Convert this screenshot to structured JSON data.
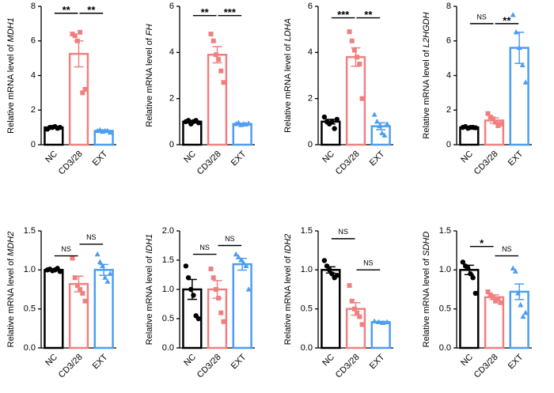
{
  "chart_data": [
    {
      "type": "bar",
      "ylabel": "Relative mRNA level of",
      "gene": "MDH1",
      "categories": [
        "NC",
        "CD3/28",
        "EXT"
      ],
      "colors": [
        "#000000",
        "#f08080",
        "#4d9ef0"
      ],
      "markers": [
        "circle",
        "square",
        "triangle"
      ],
      "values": [
        1.0,
        5.25,
        0.8
      ],
      "errors": [
        0.05,
        0.75,
        0.05
      ],
      "points": [
        [
          0.9,
          1.0,
          1.0,
          1.05,
          0.95,
          1.0
        ],
        [
          6.4,
          6.3,
          6.0,
          6.5,
          3.0,
          3.2
        ],
        [
          0.8,
          0.85,
          0.75,
          0.8,
          0.8,
          0.7
        ]
      ],
      "ylim": [
        0,
        8
      ],
      "yticks": [
        0,
        2,
        4,
        6,
        8
      ],
      "brackets": [
        {
          "between": [
            0,
            1
          ],
          "y": 7.6,
          "label": "**"
        },
        {
          "between": [
            1,
            2
          ],
          "y": 7.6,
          "label": "**"
        }
      ]
    },
    {
      "type": "bar",
      "ylabel": "Relative mRNA level of",
      "gene": "FH",
      "categories": [
        "NC",
        "CD3/28",
        "EXT"
      ],
      "colors": [
        "#000000",
        "#f08080",
        "#4d9ef0"
      ],
      "markers": [
        "circle",
        "square",
        "triangle"
      ],
      "values": [
        1.0,
        3.9,
        0.9
      ],
      "errors": [
        0.05,
        0.35,
        0.03
      ],
      "points": [
        [
          1.0,
          1.05,
          0.9,
          1.0,
          1.05,
          0.95
        ],
        [
          4.8,
          4.5,
          3.9,
          3.7,
          3.2,
          2.7
        ],
        [
          0.9,
          0.95,
          0.85,
          0.9,
          0.88,
          0.92
        ]
      ],
      "ylim": [
        0,
        6
      ],
      "yticks": [
        0,
        2,
        4,
        6
      ],
      "brackets": [
        {
          "between": [
            0,
            1
          ],
          "y": 5.6,
          "label": "**"
        },
        {
          "between": [
            1,
            2
          ],
          "y": 5.6,
          "label": "***"
        }
      ]
    },
    {
      "type": "bar",
      "ylabel": "Relative mRNA level of",
      "gene": "LDHA",
      "categories": [
        "NC",
        "CD3/28",
        "EXT"
      ],
      "colors": [
        "#000000",
        "#f08080",
        "#4d9ef0"
      ],
      "markers": [
        "circle",
        "square",
        "triangle"
      ],
      "values": [
        1.0,
        3.8,
        0.8
      ],
      "errors": [
        0.1,
        0.4,
        0.15
      ],
      "points": [
        [
          1.2,
          1.0,
          0.9,
          1.0,
          0.7,
          1.1
        ],
        [
          4.9,
          4.5,
          4.1,
          3.8,
          3.5,
          2.0
        ],
        [
          1.3,
          1.0,
          0.8,
          0.5,
          0.4,
          0.9
        ]
      ],
      "ylim": [
        0,
        6
      ],
      "yticks": [
        0,
        2,
        4,
        6
      ],
      "brackets": [
        {
          "between": [
            0,
            1
          ],
          "y": 5.5,
          "label": "***"
        },
        {
          "between": [
            1,
            2
          ],
          "y": 5.5,
          "label": "**"
        }
      ]
    },
    {
      "type": "bar",
      "ylabel": "Relative mRNA level of",
      "gene": "L2HGDH",
      "categories": [
        "NC",
        "CD3/28",
        "EXT"
      ],
      "colors": [
        "#000000",
        "#f08080",
        "#4d9ef0"
      ],
      "markers": [
        "circle",
        "square",
        "triangle"
      ],
      "values": [
        1.0,
        1.4,
        5.6
      ],
      "errors": [
        0.05,
        0.15,
        0.9
      ],
      "points": [
        [
          1.0,
          1.05,
          0.95,
          1.0,
          1.0,
          0.98
        ],
        [
          1.8,
          1.6,
          1.5,
          1.3,
          1.1,
          1.2
        ],
        [
          7.5,
          6.5,
          5.6,
          4.6,
          3.6
        ]
      ],
      "ylim": [
        0,
        8
      ],
      "yticks": [
        0,
        2,
        4,
        6,
        8
      ],
      "brackets": [
        {
          "between": [
            0,
            1
          ],
          "y": 7.0,
          "label": "NS"
        },
        {
          "between": [
            1,
            2
          ],
          "y": 7.0,
          "label": "**"
        }
      ]
    },
    {
      "type": "bar",
      "ylabel": "Relative mRNA level of",
      "gene": "MDH2",
      "categories": [
        "NC",
        "CD3/28",
        "EXT"
      ],
      "colors": [
        "#000000",
        "#f08080",
        "#4d9ef0"
      ],
      "markers": [
        "circle",
        "square",
        "triangle"
      ],
      "values": [
        1.0,
        0.82,
        1.0
      ],
      "errors": [
        0.01,
        0.1,
        0.07
      ],
      "points": [
        [
          1.0,
          1.01,
          0.99,
          1.0,
          1.02,
          0.98
        ],
        [
          1.15,
          0.9,
          0.8,
          0.75,
          0.7,
          0.6
        ],
        [
          1.2,
          1.1,
          1.05,
          0.9,
          0.85,
          0.95
        ]
      ],
      "ylim": [
        0,
        1.5
      ],
      "yticks": [
        {
          "value": 0,
          "label": "0.0"
        },
        0.5,
        {
          "value": 1,
          "label": "1.0"
        },
        1.5
      ],
      "brackets": [
        {
          "between": [
            0,
            1
          ],
          "y": 1.18,
          "label": "NS"
        },
        {
          "between": [
            1,
            2
          ],
          "y": 1.33,
          "label": "NS"
        }
      ]
    },
    {
      "type": "bar",
      "ylabel": "Relative mRNA level of",
      "gene": "IDH1",
      "categories": [
        "NC",
        "CD3/28",
        "EXT"
      ],
      "colors": [
        "#000000",
        "#f08080",
        "#4d9ef0"
      ],
      "markers": [
        "circle",
        "square",
        "triangle"
      ],
      "values": [
        1.0,
        1.0,
        1.43
      ],
      "errors": [
        0.17,
        0.15,
        0.1
      ],
      "points": [
        [
          1.4,
          1.2,
          1.0,
          0.9,
          0.55,
          0.5
        ],
        [
          1.35,
          1.2,
          1.0,
          0.85,
          0.6,
          0.45
        ],
        [
          1.6,
          1.55,
          1.5,
          1.45,
          1.4,
          1.0
        ]
      ],
      "ylim": [
        0,
        2
      ],
      "yticks": [
        {
          "value": 0,
          "label": "0.0"
        },
        0.5,
        {
          "value": 1,
          "label": "1.0"
        },
        1.5,
        {
          "value": 2,
          "label": "2.0"
        }
      ],
      "brackets": [
        {
          "between": [
            0,
            1
          ],
          "y": 1.6,
          "label": "NS"
        },
        {
          "between": [
            1,
            2
          ],
          "y": 1.75,
          "label": "NS"
        }
      ]
    },
    {
      "type": "bar",
      "ylabel": "Relative mRNA level of",
      "gene": "IDH2",
      "categories": [
        "NC",
        "CD3/28",
        "EXT"
      ],
      "colors": [
        "#000000",
        "#f08080",
        "#4d9ef0"
      ],
      "markers": [
        "circle",
        "square",
        "triangle"
      ],
      "values": [
        1.0,
        0.5,
        0.33
      ],
      "errors": [
        0.04,
        0.08,
        0.01
      ],
      "points": [
        [
          1.12,
          1.05,
          1.0,
          0.95,
          0.9,
          0.93
        ],
        [
          0.8,
          0.6,
          0.5,
          0.45,
          0.4,
          0.3
        ],
        [
          0.34,
          0.33,
          0.32,
          0.33
        ]
      ],
      "ylim": [
        0,
        1.5
      ],
      "yticks": [
        {
          "value": 0,
          "label": "0.0"
        },
        0.5,
        {
          "value": 1,
          "label": "1.0"
        },
        1.5
      ],
      "brackets": [
        {
          "between": [
            0,
            1
          ],
          "y": 1.4,
          "label": "NS"
        },
        {
          "between": [
            1,
            2
          ],
          "y": 1.0,
          "label": "NS"
        }
      ]
    },
    {
      "type": "bar",
      "ylabel": "Relative mRNA level of",
      "gene": "SDHD",
      "categories": [
        "NC",
        "CD3/28",
        "EXT"
      ],
      "colors": [
        "#000000",
        "#f08080",
        "#4d9ef0"
      ],
      "markers": [
        "circle",
        "square",
        "triangle"
      ],
      "values": [
        1.0,
        0.65,
        0.72
      ],
      "errors": [
        0.06,
        0.03,
        0.1
      ],
      "points": [
        [
          1.1,
          1.05,
          1.02,
          0.95,
          0.9,
          0.7
        ],
        [
          0.72,
          0.68,
          0.65,
          0.6,
          0.63,
          0.58
        ],
        [
          1.02,
          0.98,
          0.7,
          0.55,
          0.4,
          0.45
        ]
      ],
      "ylim": [
        0,
        1.5
      ],
      "yticks": [
        {
          "value": 0,
          "label": "0.0"
        },
        0.5,
        {
          "value": 1,
          "label": "1.0"
        },
        1.5
      ],
      "brackets": [
        {
          "between": [
            0,
            1
          ],
          "y": 1.3,
          "label": "*"
        },
        {
          "between": [
            1,
            2
          ],
          "y": 1.18,
          "label": "NS"
        }
      ]
    }
  ]
}
